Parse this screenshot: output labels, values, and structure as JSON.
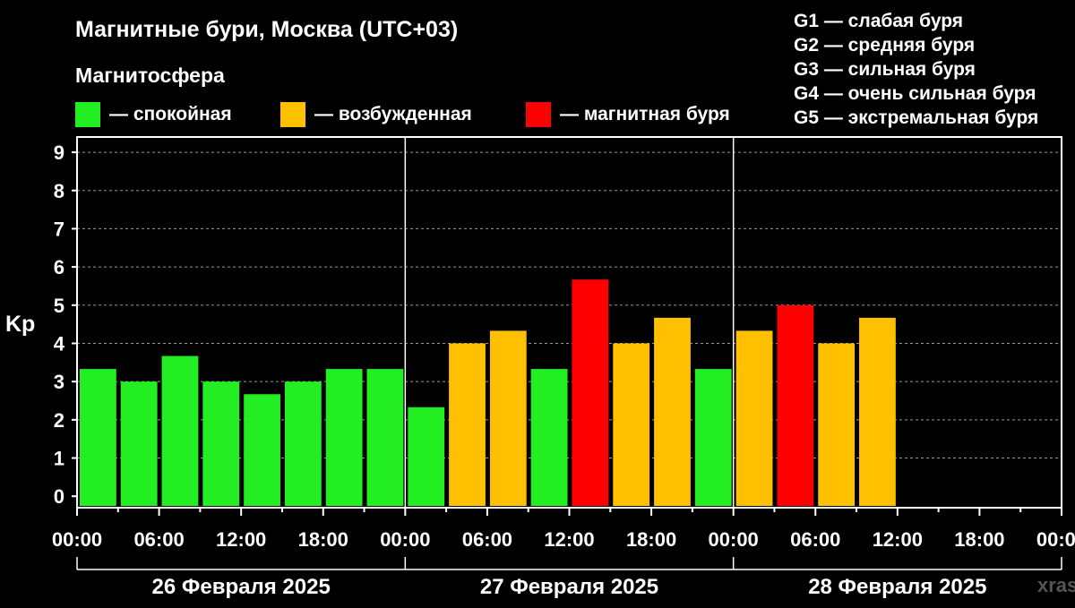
{
  "title": "Магнитные бури, Москва (UTC+03)",
  "magnetosphere": {
    "title": "Магнитосфера",
    "legend": [
      {
        "label": "— спокойная",
        "color": "#22ee22"
      },
      {
        "label": "— возбужденная",
        "color": "#ffc000"
      },
      {
        "label": "— магнитная буря",
        "color": "#ff0000"
      }
    ]
  },
  "storm_levels": [
    "G1 — слабая буря",
    "G2 — средняя буря",
    "G3 — сильная буря",
    "G4 — очень сильная буря",
    "G5 — экстремальная буря"
  ],
  "watermark": "xras",
  "chart_data": {
    "type": "bar",
    "ylabel": "Kp",
    "ylim": [
      -0.3,
      9.4
    ],
    "yticks": [
      0,
      1,
      2,
      3,
      4,
      5,
      6,
      7,
      8,
      9
    ],
    "xlim_hours": [
      0,
      72
    ],
    "bar_interval_hours": 3,
    "grid": true,
    "xtick_labels": [
      "00:00",
      "06:00",
      "12:00",
      "18:00",
      "00:00",
      "06:00",
      "12:00",
      "18:00",
      "00:00",
      "06:00",
      "12:00",
      "18:00",
      "00:00"
    ],
    "days": [
      "26 Февраля 2025",
      "27 Февраля 2025",
      "28 Февраля 2025"
    ],
    "values": [
      3.33,
      3.0,
      3.67,
      3.0,
      2.67,
      3.0,
      3.33,
      3.33,
      2.33,
      4.0,
      4.33,
      3.33,
      5.67,
      4.0,
      4.67,
      3.33,
      4.33,
      5.0,
      4.0,
      4.67
    ],
    "status": [
      "calm",
      "calm",
      "calm",
      "calm",
      "calm",
      "calm",
      "calm",
      "calm",
      "calm",
      "excited",
      "excited",
      "calm",
      "storm",
      "excited",
      "excited",
      "calm",
      "excited",
      "storm",
      "excited",
      "excited"
    ],
    "colors": {
      "calm": "#22ee22",
      "excited": "#ffc000",
      "storm": "#ff0000"
    }
  }
}
